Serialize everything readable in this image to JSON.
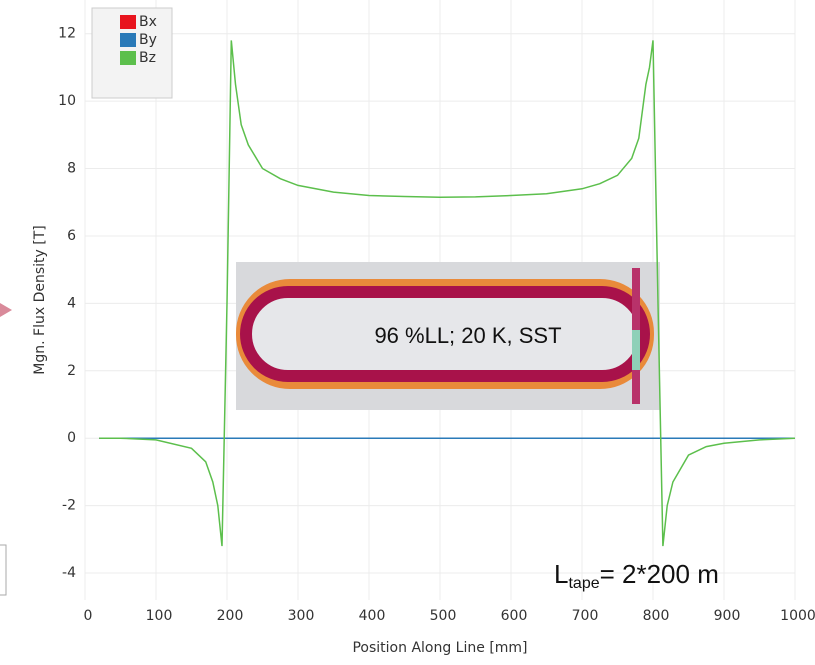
{
  "chart_data": {
    "type": "line",
    "x_label": "Position Along Line [mm]",
    "y_label": "Mgn. Flux Density [T]",
    "x": [
      20,
      50,
      100,
      150,
      170,
      180,
      187,
      193,
      200,
      206,
      212,
      220,
      230,
      250,
      275,
      300,
      350,
      400,
      450,
      500,
      550,
      600,
      650,
      700,
      725,
      750,
      770,
      780,
      790,
      795,
      800,
      807,
      814,
      820,
      828,
      850,
      875,
      900,
      950,
      1000
    ],
    "series": [
      {
        "name": "Bx",
        "color": "#e8141e",
        "values": [
          0,
          0,
          0,
          0,
          0,
          0,
          0,
          0,
          0,
          0,
          0,
          0,
          0,
          0,
          0,
          0,
          0,
          0,
          0,
          0,
          0,
          0,
          0,
          0,
          0,
          0,
          0,
          0,
          0,
          0,
          0,
          0,
          0,
          0,
          0,
          0,
          0,
          0,
          0,
          0
        ]
      },
      {
        "name": "By",
        "color": "#2a7ab8",
        "values": [
          0,
          0,
          0,
          0,
          0,
          0,
          0,
          0,
          0,
          0,
          0,
          0,
          0,
          0,
          0,
          0,
          0,
          0,
          0,
          0,
          0,
          0,
          0,
          0,
          0,
          0,
          0,
          0,
          0,
          0,
          0,
          0,
          0,
          0,
          0,
          0,
          0,
          0,
          0,
          0
        ]
      },
      {
        "name": "Bz",
        "color": "#5cbf4c",
        "values": [
          0,
          0,
          -0.05,
          -0.3,
          -0.7,
          -1.3,
          -2,
          -3.2,
          4,
          11.8,
          10.5,
          9.3,
          8.7,
          8,
          7.7,
          7.5,
          7.3,
          7.2,
          7.17,
          7.15,
          7.16,
          7.2,
          7.25,
          7.4,
          7.55,
          7.8,
          8.3,
          8.9,
          10.5,
          11,
          11.8,
          4,
          -3.2,
          -2,
          -1.3,
          -0.5,
          -0.25,
          -0.15,
          -0.05,
          0
        ]
      }
    ],
    "xlim": [
      0,
      1000
    ],
    "xticks": [
      0,
      100,
      200,
      300,
      400,
      500,
      600,
      700,
      800,
      900,
      1000
    ],
    "ylim": [
      -4.8,
      13
    ],
    "yticks": [
      -4,
      -2,
      0,
      2,
      4,
      6,
      8,
      10,
      12
    ],
    "grid": true,
    "legend": "top-left",
    "inset_label": "96 %LL; 20 K, SST",
    "tape_label": {
      "base": "L",
      "sub": "tape",
      "rest": "= 2*200 m"
    }
  }
}
